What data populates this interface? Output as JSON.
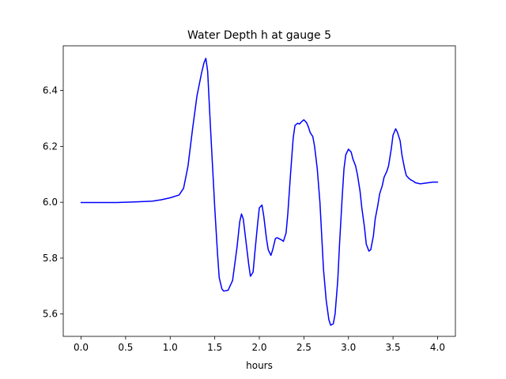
{
  "chart_data": {
    "type": "line",
    "title": "Water Depth h at gauge 5",
    "xlabel": "hours",
    "ylabel": "",
    "xlim": [
      -0.2,
      4.2
    ],
    "ylim": [
      5.52,
      6.56
    ],
    "xticks": [
      0.0,
      0.5,
      1.0,
      1.5,
      2.0,
      2.5,
      3.0,
      3.5,
      4.0
    ],
    "xtick_labels": [
      "0.0",
      "0.5",
      "1.0",
      "1.5",
      "2.0",
      "2.5",
      "3.0",
      "3.5",
      "4.0"
    ],
    "yticks": [
      5.6,
      5.8,
      6.0,
      6.2,
      6.4
    ],
    "ytick_labels": [
      "5.6",
      "5.8",
      "6.0",
      "6.2",
      "6.4"
    ],
    "grid": false,
    "colors": {
      "line": "#0000ff",
      "axes": "#000000",
      "background": "#ffffff"
    },
    "series": [
      {
        "x": [
          0.0,
          0.2,
          0.4,
          0.6,
          0.8,
          0.9,
          1.0,
          1.1,
          1.15,
          1.2,
          1.25,
          1.3,
          1.35,
          1.38,
          1.4,
          1.42,
          1.45,
          1.5,
          1.53,
          1.55,
          1.58,
          1.6,
          1.65,
          1.7,
          1.75,
          1.78,
          1.8,
          1.82,
          1.85,
          1.88,
          1.9,
          1.93,
          1.95,
          1.98,
          2.0,
          2.03,
          2.05,
          2.08,
          2.1,
          2.13,
          2.15,
          2.18,
          2.2,
          2.22,
          2.25,
          2.27,
          2.3,
          2.32,
          2.35,
          2.38,
          2.4,
          2.43,
          2.45,
          2.48,
          2.5,
          2.53,
          2.55,
          2.57,
          2.6,
          2.62,
          2.65,
          2.68,
          2.7,
          2.72,
          2.75,
          2.78,
          2.8,
          2.83,
          2.85,
          2.88,
          2.9,
          2.93,
          2.95,
          2.97,
          3.0,
          3.03,
          3.05,
          3.08,
          3.1,
          3.13,
          3.15,
          3.18,
          3.2,
          3.23,
          3.25,
          3.28,
          3.3,
          3.33,
          3.35,
          3.38,
          3.4,
          3.43,
          3.45,
          3.48,
          3.5,
          3.53,
          3.55,
          3.58,
          3.6,
          3.63,
          3.65,
          3.68,
          3.7,
          3.73,
          3.75,
          3.78,
          3.8,
          3.83,
          3.85,
          3.9,
          3.95,
          4.0
        ],
        "y": [
          5.999,
          5.999,
          5.999,
          6.001,
          6.004,
          6.009,
          6.016,
          6.026,
          6.05,
          6.13,
          6.26,
          6.38,
          6.46,
          6.5,
          6.515,
          6.47,
          6.28,
          5.98,
          5.82,
          5.73,
          5.69,
          5.682,
          5.685,
          5.72,
          5.84,
          5.93,
          5.958,
          5.94,
          5.86,
          5.78,
          5.735,
          5.75,
          5.82,
          5.92,
          5.98,
          5.99,
          5.95,
          5.87,
          5.83,
          5.81,
          5.83,
          5.87,
          5.873,
          5.87,
          5.865,
          5.86,
          5.89,
          5.96,
          6.1,
          6.23,
          6.275,
          6.283,
          6.28,
          6.29,
          6.295,
          6.285,
          6.27,
          6.25,
          6.235,
          6.2,
          6.12,
          6.0,
          5.88,
          5.76,
          5.65,
          5.58,
          5.56,
          5.565,
          5.6,
          5.72,
          5.85,
          6.02,
          6.12,
          6.17,
          6.19,
          6.18,
          6.155,
          6.13,
          6.1,
          6.04,
          5.98,
          5.91,
          5.85,
          5.825,
          5.83,
          5.88,
          5.94,
          5.99,
          6.03,
          6.06,
          6.09,
          6.11,
          6.13,
          6.19,
          6.24,
          6.263,
          6.25,
          6.22,
          6.17,
          6.12,
          6.095,
          6.085,
          6.08,
          6.075,
          6.07,
          6.068,
          6.066,
          6.067,
          6.068,
          6.07,
          6.072,
          6.072
        ]
      }
    ]
  }
}
